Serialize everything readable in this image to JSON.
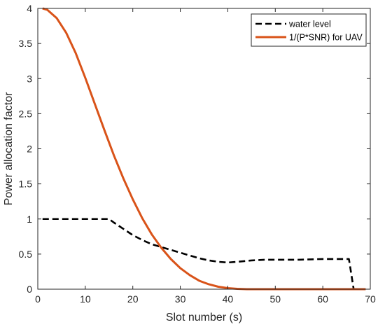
{
  "chart_data": {
    "type": "line",
    "title": "",
    "xlabel": "Slot number (s)",
    "ylabel": "Power allocation factor",
    "xlim": [
      0,
      70
    ],
    "ylim": [
      0,
      4
    ],
    "xticks": [
      0,
      10,
      20,
      30,
      40,
      50,
      60,
      70
    ],
    "yticks": [
      0,
      0.5,
      1,
      1.5,
      2,
      2.5,
      3,
      3.5,
      4
    ],
    "xtick_labels": [
      "0",
      "10",
      "20",
      "30",
      "40",
      "50",
      "60",
      "70"
    ],
    "ytick_labels": [
      "0",
      "0.5",
      "1",
      "1.5",
      "2",
      "2.5",
      "3",
      "3.5",
      "4"
    ],
    "grid": false,
    "legend_position": "top-right",
    "series": [
      {
        "name": "water level",
        "color": "#000000",
        "style": "dashed",
        "x": [
          1,
          15,
          16,
          18,
          20,
          22,
          24,
          26,
          28,
          30,
          32,
          34,
          36,
          38,
          40,
          42,
          45,
          48,
          50,
          55,
          60,
          65.5,
          66.5,
          69
        ],
        "y": [
          1.0,
          1.0,
          0.95,
          0.86,
          0.77,
          0.7,
          0.64,
          0.6,
          0.56,
          0.52,
          0.48,
          0.44,
          0.41,
          0.39,
          0.38,
          0.39,
          0.41,
          0.42,
          0.42,
          0.42,
          0.43,
          0.43,
          0.0,
          0.0
        ]
      },
      {
        "name": "1/(P*SNR) for UAV",
        "color": "#D95319",
        "style": "solid",
        "x": [
          1,
          2,
          4,
          6,
          8,
          10,
          12,
          14,
          16,
          18,
          20,
          22,
          24,
          26,
          28,
          30,
          32,
          34,
          36,
          38,
          40,
          42,
          44,
          46,
          50,
          55,
          60,
          65,
          69
        ],
        "y": [
          4.0,
          3.98,
          3.86,
          3.65,
          3.36,
          3.01,
          2.64,
          2.27,
          1.91,
          1.58,
          1.28,
          1.01,
          0.78,
          0.59,
          0.43,
          0.3,
          0.2,
          0.12,
          0.07,
          0.035,
          0.015,
          0.005,
          0.0,
          0.0,
          0.0,
          0.0,
          0.0,
          0.0,
          0.0
        ]
      }
    ]
  }
}
